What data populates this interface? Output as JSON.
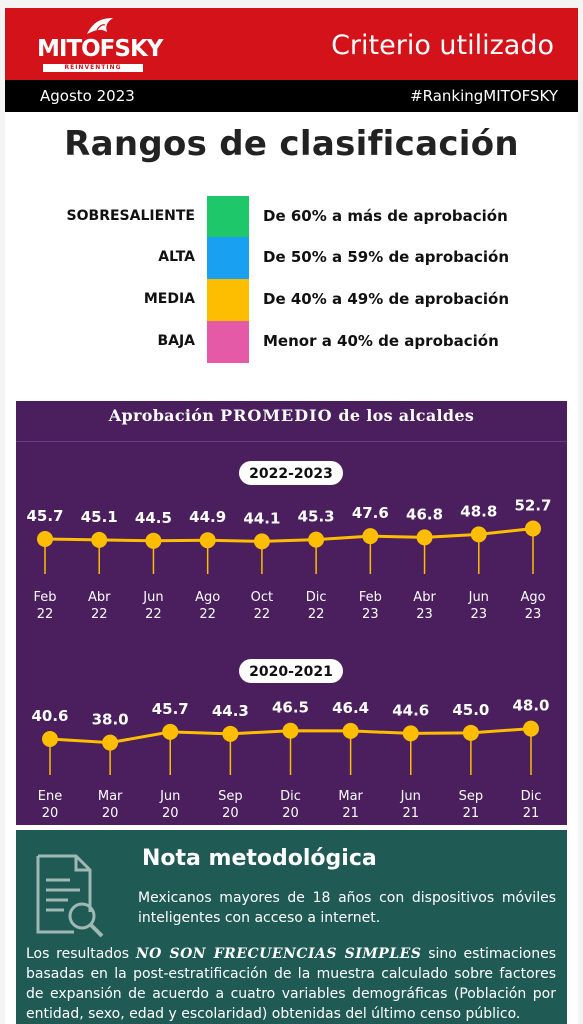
{
  "header": {
    "logo_text": "MITOFSKY",
    "logo_sub": "REINVENTING RESEARCH",
    "title": "Criterio utilizado",
    "date": "Agosto  2023",
    "hashtag": "#RankingMITOFSKY"
  },
  "main_title": "Rangos de clasificación",
  "ranges": [
    {
      "label": "SOBRESALIENTE",
      "desc": "De 60% a más de aprobación",
      "color": "#1ec86a"
    },
    {
      "label": "ALTA",
      "desc": "De 50% a 59% de aprobación",
      "color": "#1aa0f0"
    },
    {
      "label": "MEDIA",
      "desc": "De 40% a 49% de aprobación",
      "color": "#fdbd00"
    },
    {
      "label": "BAJA",
      "desc": "Menor a 40% de aprobación",
      "color": "#e55aa6"
    }
  ],
  "panel_title_pre": "Aprobación ",
  "panel_title_bold": "PROMEDIO",
  "panel_title_post": " de los alcaldes",
  "chart_data": [
    {
      "type": "line",
      "title": "2022-2023",
      "categories": [
        [
          "Feb",
          "22"
        ],
        [
          "Abr",
          "22"
        ],
        [
          "Jun",
          "22"
        ],
        [
          "Ago",
          "22"
        ],
        [
          "Oct",
          "22"
        ],
        [
          "Dic",
          "22"
        ],
        [
          "Feb",
          "23"
        ],
        [
          "Abr",
          "23"
        ],
        [
          "Jun",
          "23"
        ],
        [
          "Ago",
          "23"
        ]
      ],
      "values": [
        45.7,
        45.1,
        44.5,
        44.9,
        44.1,
        45.3,
        47.6,
        46.8,
        48.8,
        52.7
      ],
      "data_labels": [
        "45.7",
        "45.1",
        "44.5",
        "44.9",
        "44.1",
        "45.3",
        "47.6",
        "46.8",
        "48.8",
        "52.7"
      ]
    },
    {
      "type": "line",
      "title": "2020-2021",
      "categories": [
        [
          "Ene",
          "20"
        ],
        [
          "Mar",
          "20"
        ],
        [
          "Jun",
          "20"
        ],
        [
          "Sep",
          "20"
        ],
        [
          "Dic",
          "20"
        ],
        [
          "Mar",
          "21"
        ],
        [
          "Jun",
          "21"
        ],
        [
          "Sep",
          "21"
        ],
        [
          "Dic",
          "21"
        ]
      ],
      "values": [
        40.6,
        38.0,
        45.7,
        44.3,
        46.5,
        46.4,
        44.6,
        45.0,
        48.0
      ],
      "data_labels": [
        "40.6",
        "38.0",
        "45.7",
        "44.3",
        "46.5",
        "46.4",
        "44.6",
        "45.0",
        "48.0"
      ]
    }
  ],
  "colors": {
    "line": "#fdbd00",
    "marker": "#fdbd00",
    "panel_bg": "#4b1e5e"
  },
  "note": {
    "title": "Nota metodológica",
    "p1": "Mexicanos mayores de 18 años con dispositivos móviles inteligentes con acceso a internet.",
    "p2_pre": "Los resultados ",
    "p2_bold": "NO SON FRECUENCIAS SIMPLES",
    "p2_post": " sino estimaciones basadas en la post-estratificación de la muestra calculado sobre factores de expansión de acuerdo a cuatro variables demográficas (Población por entidad, sexo, edad y escolaridad) obtenidas del último censo público.",
    "icon": "document-search-icon"
  }
}
